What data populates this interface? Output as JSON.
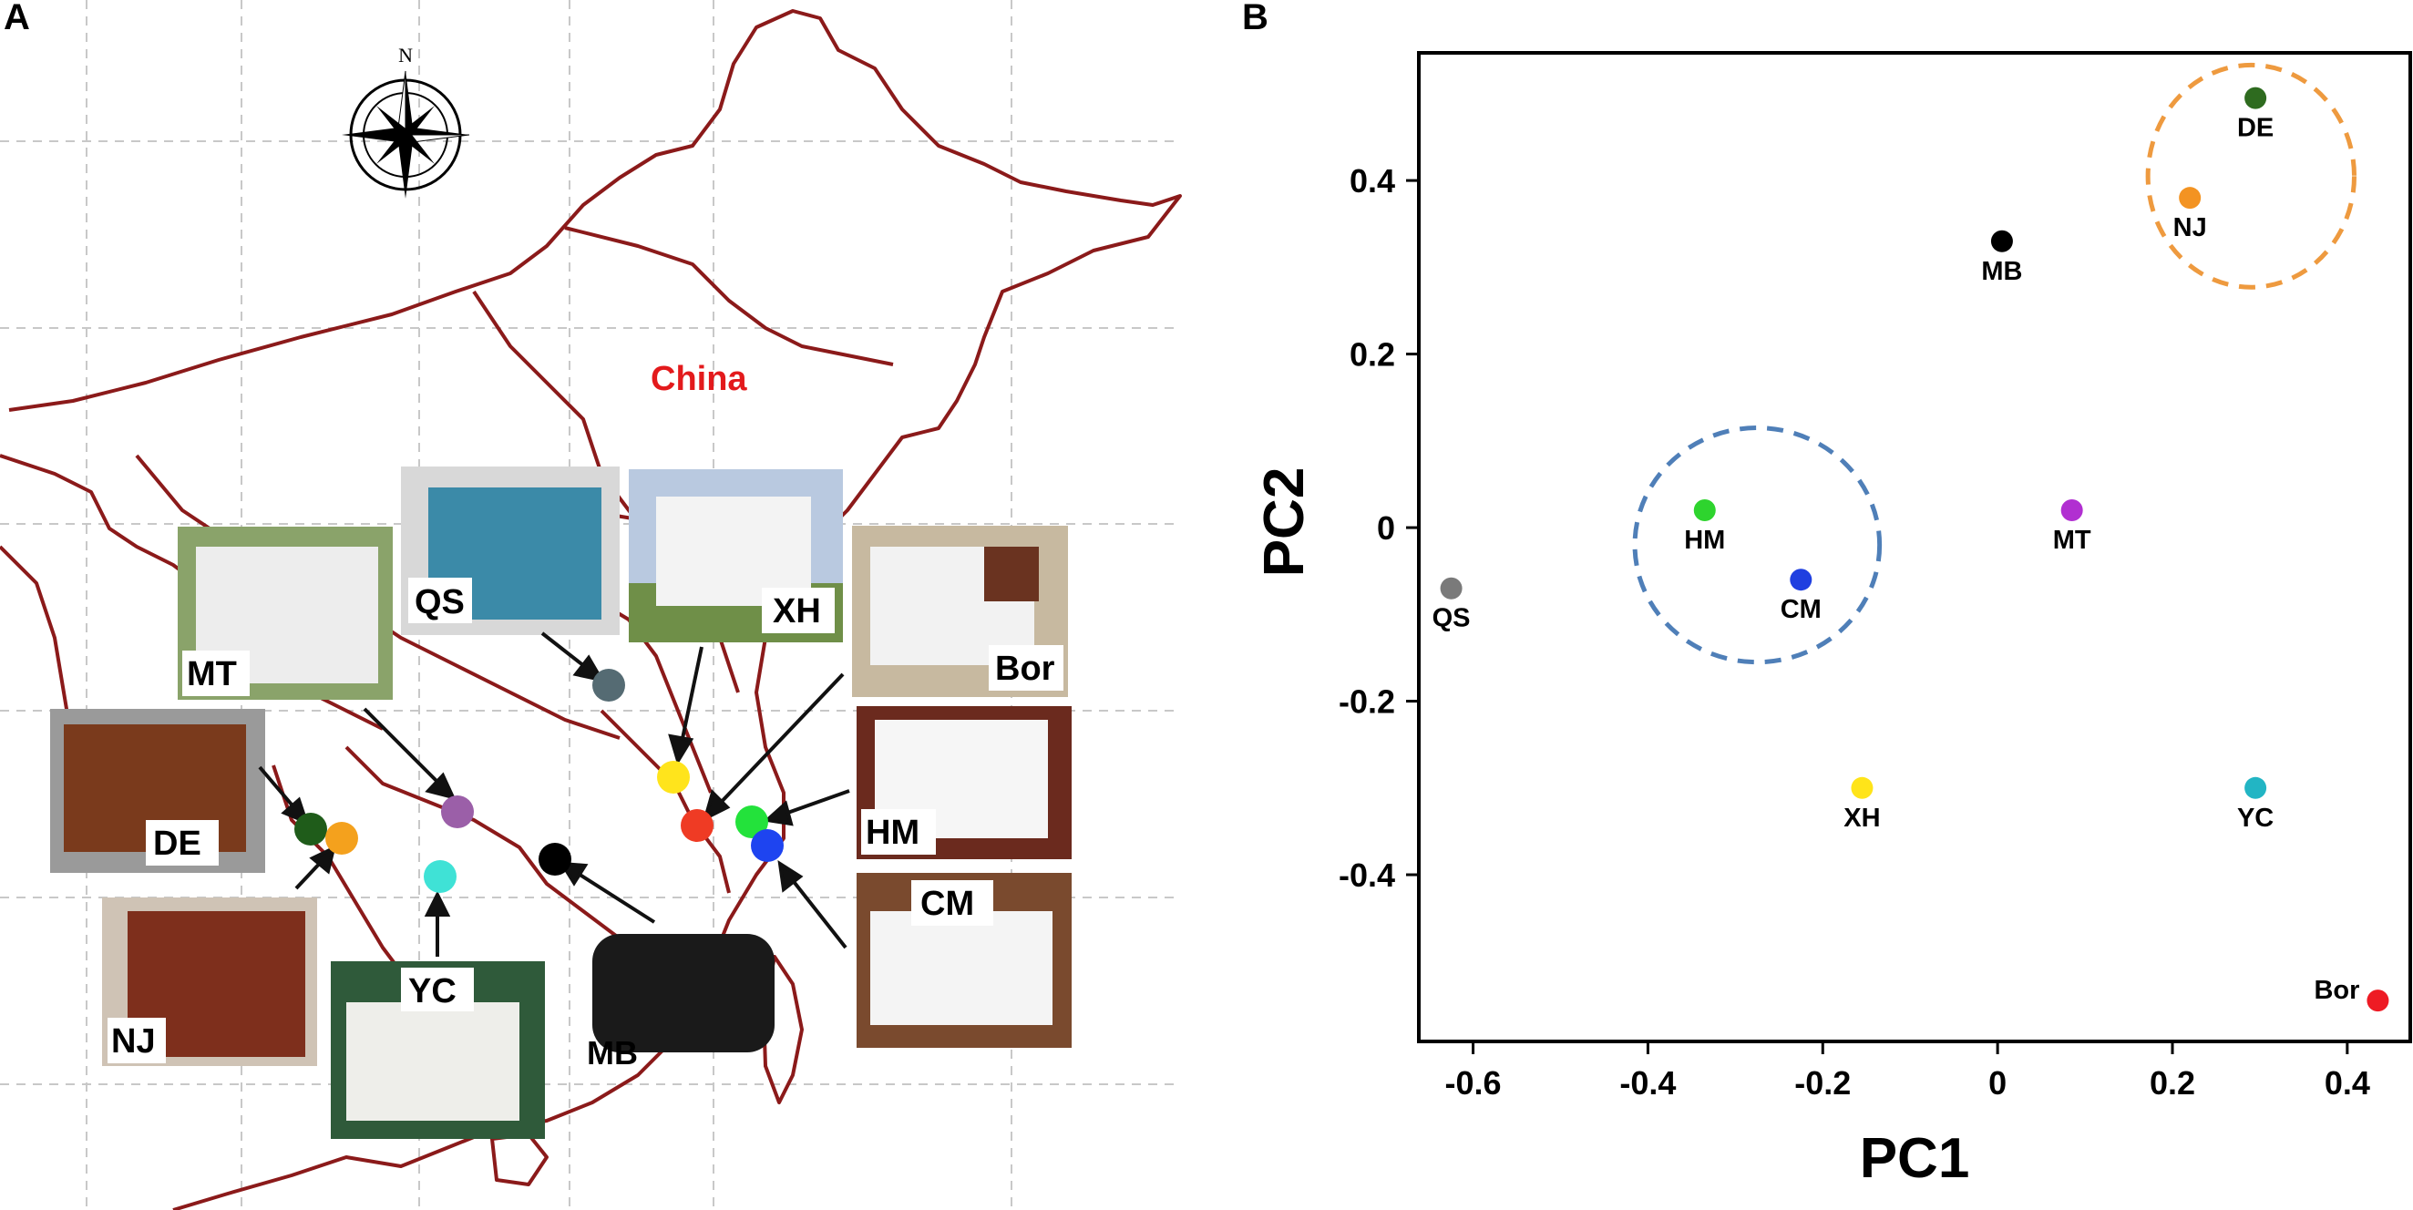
{
  "panels": {
    "a_label": "A",
    "b_label": "B"
  },
  "map": {
    "country_label": "China",
    "compass_label": "N",
    "breeds": [
      {
        "code": "MT",
        "marker_color": "#9b5fa8"
      },
      {
        "code": "QS",
        "marker_color": "#556b73"
      },
      {
        "code": "XH",
        "marker_color": "#ffe41c"
      },
      {
        "code": "Bor",
        "marker_color": "#ef3b24"
      },
      {
        "code": "HM",
        "marker_color": "#23e23b"
      },
      {
        "code": "CM",
        "marker_color": "#1e44f0"
      },
      {
        "code": "DE",
        "marker_color": "#1f5c1a"
      },
      {
        "code": "NJ",
        "marker_color": "#f4a11d"
      },
      {
        "code": "YC",
        "marker_color": "#3fe2d6"
      },
      {
        "code": "MB",
        "marker_color": "#000000"
      }
    ]
  },
  "chart_data": {
    "type": "scatter",
    "xlabel": "PC1",
    "ylabel": "PC2",
    "xlim": [
      -0.66,
      0.47
    ],
    "ylim": [
      -0.59,
      0.545
    ],
    "xticks": [
      -0.6,
      -0.4,
      -0.2,
      0,
      0.2,
      0.4
    ],
    "xtick_labels": [
      "-0.6",
      "-0.4",
      "-0.2",
      "0",
      "0.2",
      "0.4"
    ],
    "yticks": [
      -0.4,
      -0.2,
      0,
      0.2,
      0.4
    ],
    "ytick_labels": [
      "-0.4",
      "-0.2",
      "0",
      "0.2",
      "0.4"
    ],
    "grid": false,
    "points": [
      {
        "label": "DE",
        "x": 0.295,
        "y": 0.495,
        "color": "#2e6b1f",
        "label_pos": "below"
      },
      {
        "label": "NJ",
        "x": 0.22,
        "y": 0.38,
        "color": "#f39322",
        "label_pos": "below"
      },
      {
        "label": "MB",
        "x": 0.005,
        "y": 0.33,
        "color": "#000000",
        "label_pos": "below"
      },
      {
        "label": "HM",
        "x": -0.335,
        "y": 0.02,
        "color": "#2ed42e",
        "label_pos": "below"
      },
      {
        "label": "MT",
        "x": 0.085,
        "y": 0.02,
        "color": "#b12fd1",
        "label_pos": "below"
      },
      {
        "label": "CM",
        "x": -0.225,
        "y": -0.06,
        "color": "#1f3fe0",
        "label_pos": "below"
      },
      {
        "label": "QS",
        "x": -0.625,
        "y": -0.07,
        "color": "#7a7a7a",
        "label_pos": "below"
      },
      {
        "label": "XH",
        "x": -0.155,
        "y": -0.3,
        "color": "#ffe419",
        "label_pos": "below"
      },
      {
        "label": "YC",
        "x": 0.295,
        "y": -0.3,
        "color": "#22b5c4",
        "label_pos": "below"
      },
      {
        "label": "Bor",
        "x": 0.435,
        "y": -0.545,
        "color": "#ee1b24",
        "label_pos": "left"
      }
    ],
    "clusters": [
      {
        "cx": 0.29,
        "cy": 0.405,
        "rx": 0.118,
        "ry": 0.128,
        "color": "#ee9a3f"
      },
      {
        "cx": -0.275,
        "cy": -0.02,
        "rx": 0.14,
        "ry": 0.135,
        "color": "#4f7fb8"
      }
    ]
  }
}
